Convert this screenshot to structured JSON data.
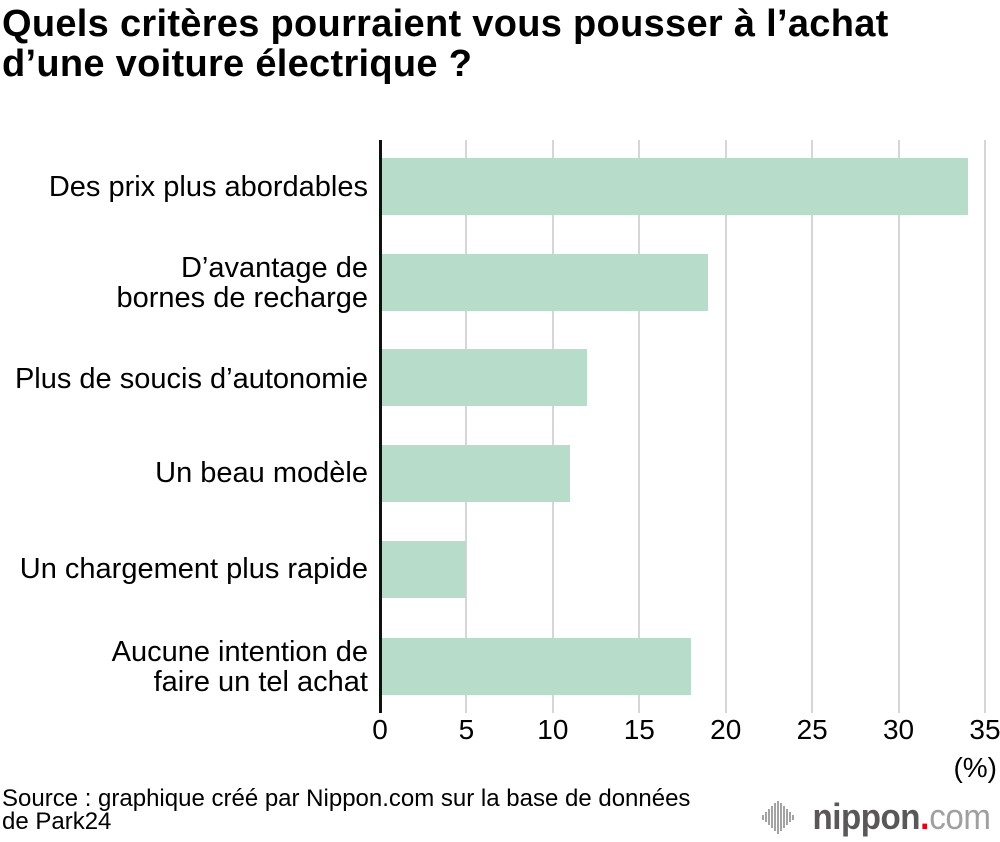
{
  "title": {
    "line1": "Quels critères pourraient vous pousser à l’achat",
    "line2": "d’une voiture électrique ?"
  },
  "chart_data": {
    "type": "bar",
    "orientation": "horizontal",
    "title": "Quels critères pourraient vous pousser à l’achat d’une voiture électrique ?",
    "categories": [
      "Des prix plus abordables",
      "D’avantage de bornes de recharge",
      "Plus de soucis d’autonomie",
      "Un beau modèle",
      "Un chargement plus rapide",
      "Aucune intention de faire un tel achat"
    ],
    "label_lines": [
      [
        "Des prix plus abordables"
      ],
      [
        "D’avantage de",
        "bornes de recharge"
      ],
      [
        "Plus de soucis d’autonomie"
      ],
      [
        "Un beau modèle"
      ],
      [
        "Un chargement plus rapide"
      ],
      [
        "Aucune intention de",
        "faire un tel achat"
      ]
    ],
    "values": [
      34,
      19,
      12,
      11,
      5,
      18
    ],
    "xlabel": "(%)",
    "xlim": [
      0,
      35
    ],
    "xticks": [
      0,
      5,
      10,
      15,
      20,
      25,
      30,
      35
    ],
    "grid": "vertical",
    "bar_color": "#b7dcc9",
    "gridline_color": "#d6d6d6",
    "axis_color": "#111111"
  },
  "footer": {
    "source_line1": "Source : graphique créé par Nippon.com sur la base de données",
    "source_line2": "de Park24"
  },
  "logo": {
    "name": "nippon.com",
    "text_main": "nippon",
    "text_dot": ".",
    "text_suffix": "com",
    "color_main": "#595757",
    "color_dot": "#e60012",
    "color_suffix": "#9fa0a0"
  }
}
